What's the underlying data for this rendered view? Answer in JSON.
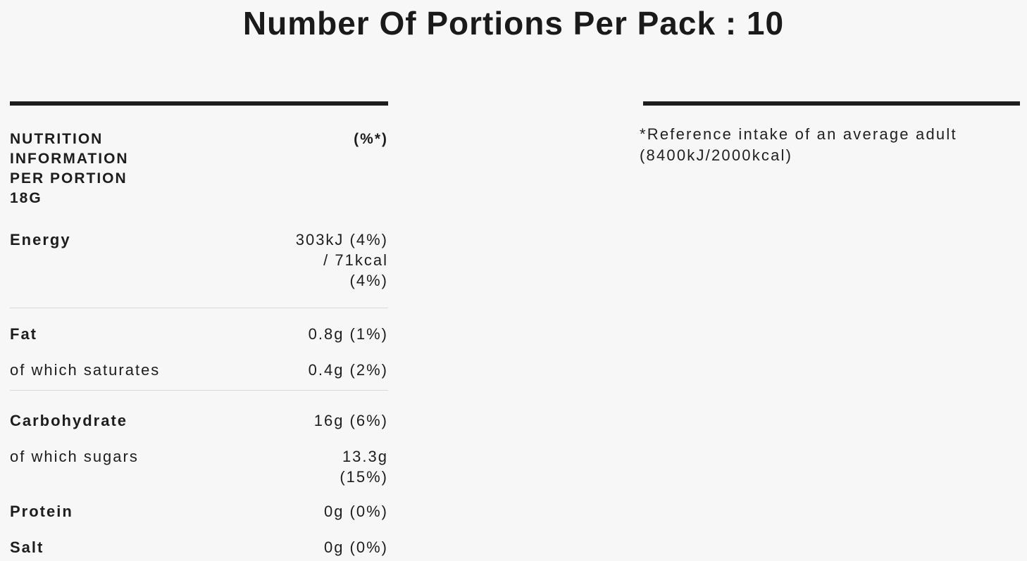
{
  "page": {
    "title": "Number Of Portions Per Pack : 10",
    "background_color": "#f7f7f7",
    "text_color": "#1d1d1d",
    "rule_color": "#1d1d1d",
    "divider_color": "#d9d9d9"
  },
  "nutrition_table": {
    "header": {
      "label": "NUTRITION INFORMATION PER PORTION 18G",
      "percent_column": "(%*)"
    },
    "rows": [
      {
        "label": "Energy",
        "value": "303kJ (4%)\n/ 71kcal\n(4%)",
        "emphasis": "bold"
      },
      {
        "label": "Fat",
        "value": "0.8g (1%)",
        "emphasis": "bold"
      },
      {
        "label": "of which saturates",
        "value": "0.4g (2%)",
        "emphasis": "normal"
      },
      {
        "label": "Carbohydrate",
        "value": "16g (6%)",
        "emphasis": "bold"
      },
      {
        "label": "of which sugars",
        "value": "13.3g\n(15%)",
        "emphasis": "normal"
      },
      {
        "label": "Protein",
        "value": "0g (0%)",
        "emphasis": "bold"
      },
      {
        "label": "Salt",
        "value": "0g (0%)",
        "emphasis": "bold"
      }
    ]
  },
  "reference_note": {
    "text": "*Reference intake of an average adult\n(8400kJ/2000kcal)"
  }
}
